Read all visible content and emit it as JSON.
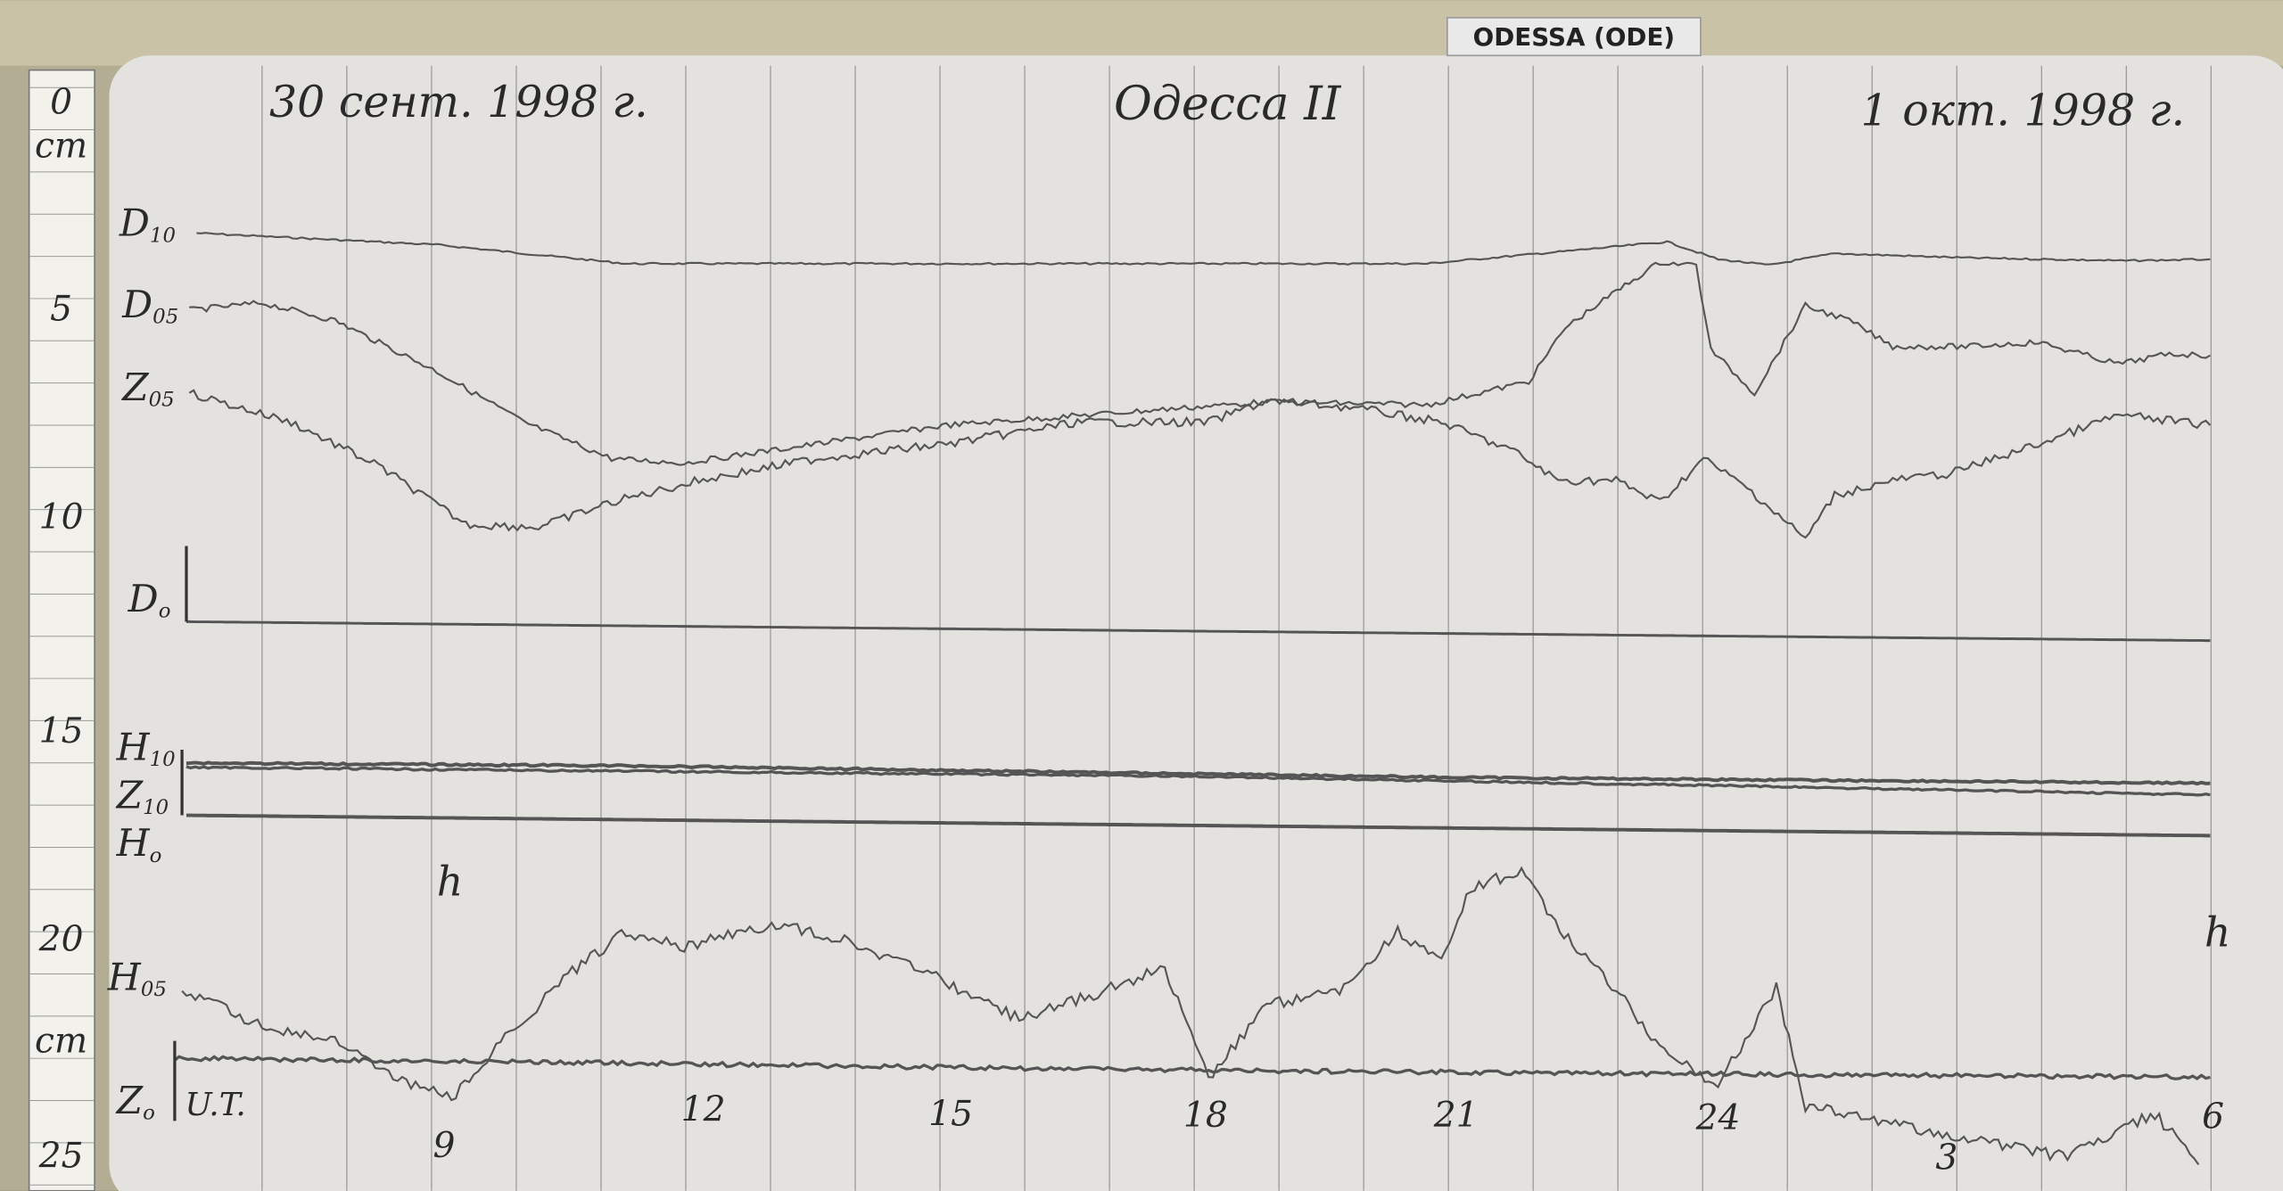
{
  "label_tag": "ODESSA (ODE)",
  "header": {
    "date_left": "30 сент. 1998 г.",
    "station": "Одесса II",
    "date_right": "1 окт. 1998 г."
  },
  "ruler": {
    "marks": [
      "0",
      "cm",
      "5",
      "10",
      "15",
      "20",
      "cm",
      "25"
    ]
  },
  "traces": [
    {
      "name": "D",
      "sub": "10"
    },
    {
      "name": "D",
      "sub": "05"
    },
    {
      "name": "Z",
      "sub": "05"
    },
    {
      "name": "D",
      "sub": "o"
    },
    {
      "name": "H",
      "sub": "10"
    },
    {
      "name": "Z",
      "sub": "10"
    },
    {
      "name": "H",
      "sub": "o"
    },
    {
      "name": "H",
      "sub": "05"
    },
    {
      "name": "Z",
      "sub": "o"
    }
  ],
  "time_axis": {
    "label": "U.T.",
    "unit_marks": [
      "h",
      "h"
    ],
    "hours": [
      "9",
      "12",
      "15",
      "18",
      "21",
      "24",
      "3",
      "6"
    ]
  }
}
